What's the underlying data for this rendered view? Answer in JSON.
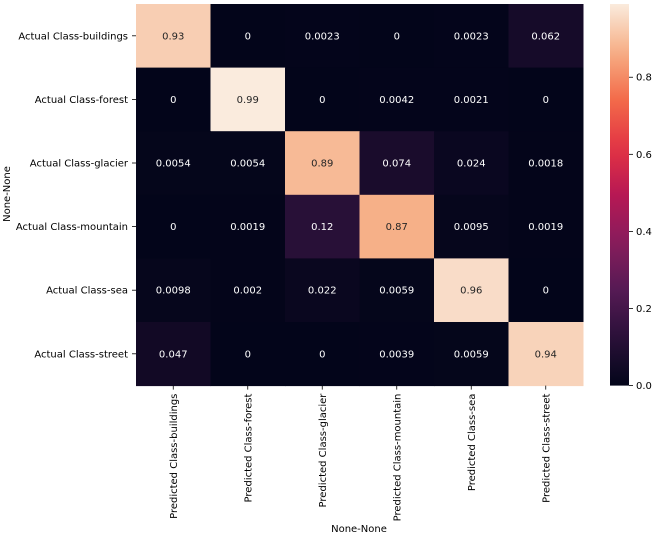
{
  "chart_data": {
    "type": "heatmap",
    "title": "",
    "xlabel": "None-None",
    "ylabel": "None-None",
    "x_categories": [
      "Predicted Class-buildings",
      "Predicted Class-forest",
      "Predicted Class-glacier",
      "Predicted Class-mountain",
      "Predicted Class-sea",
      "Predicted Class-street"
    ],
    "y_categories": [
      "Actual Class-buildings",
      "Actual Class-forest",
      "Actual Class-glacier",
      "Actual Class-mountain",
      "Actual Class-sea",
      "Actual Class-street"
    ],
    "values": [
      [
        0.93,
        0,
        0.0023,
        0,
        0.0023,
        0.062
      ],
      [
        0,
        0.99,
        0,
        0.0042,
        0.0021,
        0
      ],
      [
        0.0054,
        0.0054,
        0.89,
        0.074,
        0.024,
        0.0018
      ],
      [
        0,
        0.0019,
        0.12,
        0.87,
        0.0095,
        0.0019
      ],
      [
        0.0098,
        0.002,
        0.022,
        0.0059,
        0.96,
        0
      ],
      [
        0.047,
        0,
        0,
        0.0039,
        0.0059,
        0.94
      ]
    ],
    "annotations": [
      [
        "0.93",
        "0",
        "0.0023",
        "0",
        "0.0023",
        "0.062"
      ],
      [
        "0",
        "0.99",
        "0",
        "0.0042",
        "0.0021",
        "0"
      ],
      [
        "0.0054",
        "0.0054",
        "0.89",
        "0.074",
        "0.024",
        "0.0018"
      ],
      [
        "0",
        "0.0019",
        "0.12",
        "0.87",
        "0.0095",
        "0.0019"
      ],
      [
        "0.0098",
        "0.002",
        "0.022",
        "0.0059",
        "0.96",
        "0"
      ],
      [
        "0.047",
        "0",
        "0",
        "0.0039",
        "0.0059",
        "0.94"
      ]
    ],
    "colorbar": {
      "colormap": "rocket",
      "range": [
        0,
        0.99
      ],
      "ticks": [
        0.0,
        0.2,
        0.4,
        0.6,
        0.8
      ],
      "tick_labels": [
        "0.0",
        "0.2",
        "0.4",
        "0.6",
        "0.8"
      ]
    },
    "grid": false,
    "legend": "colorbar-right"
  }
}
